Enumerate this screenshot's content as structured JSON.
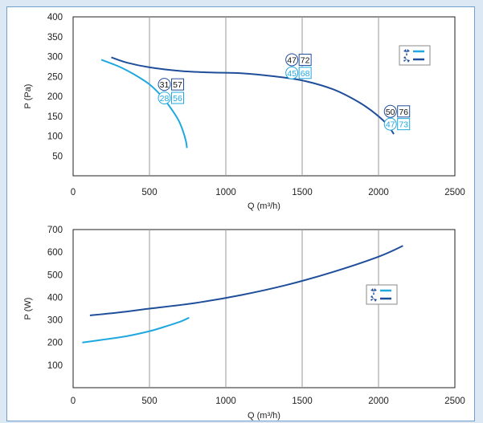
{
  "colors": {
    "series_dark": "#1f4e9a",
    "series_light": "#1fa8e0",
    "grid": "#999999",
    "axis": "#222222",
    "frame": "#6f9fcc",
    "background": "#dce9f4"
  },
  "chart_data": [
    {
      "type": "line",
      "title": "",
      "xlabel": "Q (m³/h)",
      "ylabel": "P (Pa)",
      "xlim": [
        0,
        2500
      ],
      "ylim": [
        0,
        400
      ],
      "x_ticks": [
        "0",
        "500",
        "1000",
        "1500",
        "2000",
        "2500"
      ],
      "y_ticks": [
        "50",
        "100",
        "150",
        "200",
        "250",
        "300",
        "350",
        "400"
      ],
      "y_tick_values": [
        50,
        100,
        150,
        200,
        250,
        300,
        350,
        400
      ],
      "grid": "vertical",
      "legend_icon": "fan-icon",
      "series": [
        {
          "color": "#1fa8e0",
          "x": [
            185,
            300,
            400,
            500,
            580,
            640,
            690,
            720,
            740,
            745
          ],
          "y": [
            292,
            275,
            255,
            230,
            200,
            170,
            140,
            112,
            85,
            70
          ]
        },
        {
          "color": "#1f4e9a",
          "x": [
            250,
            350,
            500,
            700,
            900,
            1100,
            1300,
            1500,
            1700,
            1850,
            1950,
            2050,
            2100
          ],
          "y": [
            298,
            285,
            273,
            264,
            260,
            258,
            251,
            240,
            218,
            190,
            165,
            132,
            105
          ]
        }
      ],
      "annotations": [
        {
          "x": 650,
          "y": 230,
          "circle": "31",
          "square": "57",
          "color": "#1f4e9a"
        },
        {
          "x": 650,
          "y": 196,
          "circle": "28",
          "square": "56",
          "color": "#1fa8e0"
        },
        {
          "x": 1485,
          "y": 292,
          "circle": "47",
          "square": "72",
          "color": "#1f4e9a"
        },
        {
          "x": 1485,
          "y": 259,
          "circle": "45",
          "square": "68",
          "color": "#1fa8e0"
        },
        {
          "x": 2130,
          "y": 162,
          "circle": "50",
          "square": "76",
          "color": "#1f4e9a"
        },
        {
          "x": 2130,
          "y": 130,
          "circle": "47",
          "square": "73",
          "color": "#1fa8e0"
        }
      ]
    },
    {
      "type": "line",
      "title": "",
      "xlabel": "Q (m³/h)",
      "ylabel": "P (W)",
      "xlim": [
        0,
        2500
      ],
      "ylim": [
        0,
        700
      ],
      "x_ticks": [
        "0",
        "500",
        "1000",
        "1500",
        "2000",
        "2500"
      ],
      "y_ticks": [
        "100",
        "200",
        "300",
        "400",
        "500",
        "600",
        "700"
      ],
      "y_tick_values": [
        100,
        200,
        300,
        400,
        500,
        600,
        700
      ],
      "grid": "vertical",
      "legend_icon": "fan-icon",
      "series": [
        {
          "color": "#1fa8e0",
          "x": [
            60,
            200,
            350,
            500,
            600,
            700,
            760
          ],
          "y": [
            200,
            213,
            228,
            250,
            270,
            292,
            310
          ]
        },
        {
          "color": "#1f4e9a",
          "x": [
            110,
            300,
            500,
            800,
            1100,
            1400,
            1700,
            2000,
            2160
          ],
          "y": [
            320,
            333,
            350,
            375,
            410,
            455,
            512,
            580,
            628
          ]
        }
      ]
    }
  ]
}
